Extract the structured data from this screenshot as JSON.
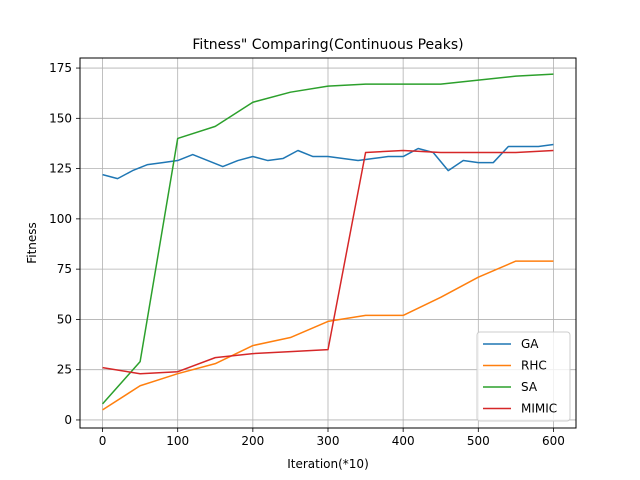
{
  "chart_data": {
    "type": "line",
    "title": "Fitness\" Comparing(Continuous Peaks)",
    "xlabel": "Iteration(*10)",
    "ylabel": "Fitness",
    "xlim": [
      -30,
      630
    ],
    "ylim": [
      -4,
      180
    ],
    "xticks": [
      0,
      100,
      200,
      300,
      400,
      500,
      600
    ],
    "yticks": [
      0,
      25,
      50,
      75,
      100,
      125,
      150,
      175
    ],
    "grid": true,
    "legend_position": "lower-right",
    "series": [
      {
        "name": "GA",
        "color": "#1f77b4",
        "points": [
          [
            0,
            122
          ],
          [
            20,
            120
          ],
          [
            40,
            124
          ],
          [
            60,
            127
          ],
          [
            80,
            128
          ],
          [
            100,
            129
          ],
          [
            120,
            132
          ],
          [
            140,
            129
          ],
          [
            160,
            126
          ],
          [
            180,
            129
          ],
          [
            200,
            131
          ],
          [
            220,
            129
          ],
          [
            240,
            130
          ],
          [
            260,
            134
          ],
          [
            280,
            131
          ],
          [
            300,
            131
          ],
          [
            320,
            130
          ],
          [
            340,
            129
          ],
          [
            360,
            130
          ],
          [
            380,
            131
          ],
          [
            400,
            131
          ],
          [
            420,
            135
          ],
          [
            440,
            133
          ],
          [
            460,
            124
          ],
          [
            480,
            129
          ],
          [
            500,
            128
          ],
          [
            520,
            128
          ],
          [
            540,
            136
          ],
          [
            560,
            136
          ],
          [
            580,
            136
          ],
          [
            600,
            137
          ]
        ]
      },
      {
        "name": "RHC",
        "color": "#ff7f0e",
        "points": [
          [
            0,
            5
          ],
          [
            50,
            17
          ],
          [
            100,
            23
          ],
          [
            150,
            28
          ],
          [
            200,
            37
          ],
          [
            250,
            41
          ],
          [
            300,
            49
          ],
          [
            350,
            52
          ],
          [
            400,
            52
          ],
          [
            450,
            61
          ],
          [
            500,
            71
          ],
          [
            550,
            79
          ],
          [
            600,
            79
          ]
        ]
      },
      {
        "name": "SA",
        "color": "#2ca02c",
        "points": [
          [
            0,
            8
          ],
          [
            50,
            29
          ],
          [
            100,
            140
          ],
          [
            150,
            146
          ],
          [
            200,
            158
          ],
          [
            250,
            163
          ],
          [
            300,
            166
          ],
          [
            350,
            167
          ],
          [
            400,
            167
          ],
          [
            450,
            167
          ],
          [
            500,
            169
          ],
          [
            550,
            171
          ],
          [
            600,
            172
          ]
        ]
      },
      {
        "name": "MIMIC",
        "color": "#d62728",
        "points": [
          [
            0,
            26
          ],
          [
            50,
            23
          ],
          [
            100,
            24
          ],
          [
            150,
            31
          ],
          [
            200,
            33
          ],
          [
            250,
            34
          ],
          [
            300,
            35
          ],
          [
            350,
            133
          ],
          [
            400,
            134
          ],
          [
            450,
            133
          ],
          [
            500,
            133
          ],
          [
            550,
            133
          ],
          [
            600,
            134
          ]
        ]
      }
    ]
  }
}
